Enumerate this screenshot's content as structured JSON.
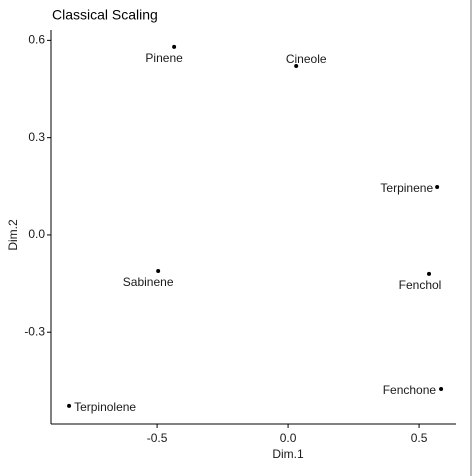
{
  "chart_data": {
    "type": "scatter",
    "title": "Classical Scaling",
    "x_label": "Dim.1",
    "y_label": "Dim.2",
    "labels": [
      "Pinene",
      "Cineole",
      "Terpinene",
      "Sabinene",
      "Fenchol",
      "Fenchone",
      "Terpinolene"
    ],
    "x": [
      -0.435,
      0.031,
      0.569,
      -0.496,
      0.538,
      0.584,
      -0.836
    ],
    "values": [
      0.58,
      0.521,
      0.148,
      -0.111,
      -0.12,
      -0.475,
      -0.527
    ],
    "color": "#000000",
    "xlim": [
      -0.905,
      0.641
    ],
    "ylim": [
      -0.583,
      0.632
    ],
    "xticks": [
      -0.5,
      {
        "value": 0,
        "label": "0.0"
      },
      0.5
    ],
    "yticks": [
      -0.3,
      {
        "value": 0,
        "label": "0.0"
      },
      0.3,
      0.6
    ],
    "grid": false
  }
}
